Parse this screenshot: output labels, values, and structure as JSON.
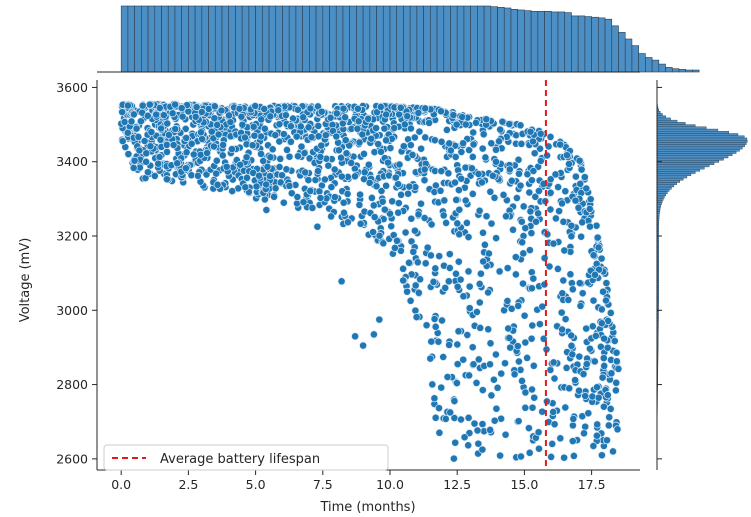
{
  "chart_data": {
    "type": "scatter",
    "title": "",
    "xlabel": "Time (months)",
    "ylabel": "Voltage (mV)",
    "xlim": [
      -0.9,
      19.3
    ],
    "ylim": [
      2570,
      3620
    ],
    "xticks": [
      "0.0",
      "2.5",
      "5.0",
      "7.5",
      "10.0",
      "12.5",
      "15.0",
      "17.5"
    ],
    "xtick_values": [
      0,
      2.5,
      5,
      7.5,
      10,
      12.5,
      15,
      17.5
    ],
    "yticks": [
      "2600",
      "2800",
      "3000",
      "3200",
      "3400",
      "3600"
    ],
    "ytick_values": [
      2600,
      2800,
      3000,
      3200,
      3400,
      3600
    ],
    "grid": false,
    "colors": {
      "points": "#1f77b4",
      "point_edge": "#dbe9f6",
      "hist": "#4c8fc4",
      "hist_edge": "#2c3e50",
      "lifespan_line": "#e31a1c",
      "axes": "#262626"
    },
    "series": [
      {
        "description": "battery voltage readings (dense cloud); approximate upper/lower envelope of the point cloud",
        "envelope_x": [
          0,
          2,
          4,
          6,
          8,
          10,
          11,
          12,
          13,
          14,
          15,
          16,
          17,
          17.5,
          18,
          18.5
        ],
        "envelope_upper": [
          3555,
          3555,
          3550,
          3550,
          3550,
          3550,
          3545,
          3540,
          3520,
          3510,
          3500,
          3470,
          3420,
          3300,
          3100,
          2850
        ],
        "envelope_lower": [
          3360,
          3340,
          3320,
          3280,
          3240,
          3170,
          2950,
          2600,
          2600,
          2600,
          2600,
          2600,
          2600,
          2600,
          2600,
          2600
        ],
        "outliers": [
          [
            7.3,
            3225
          ],
          [
            5.4,
            3270
          ],
          [
            8.2,
            3078
          ],
          [
            8.7,
            2930
          ],
          [
            9.0,
            2905
          ],
          [
            9.4,
            2935
          ],
          [
            9.6,
            2975
          ],
          [
            11.5,
            2870
          ]
        ]
      }
    ],
    "reference_lines": [
      {
        "orientation": "vertical",
        "x": 15.8,
        "style": "dashed",
        "label": "Average battery lifespan"
      }
    ],
    "legend": {
      "entries": [
        "Average battery lifespan"
      ],
      "placement": "lower-left"
    },
    "marginal_top": {
      "type": "histogram",
      "bin_start": 0,
      "bin_width": 0.25,
      "counts": [
        100,
        100,
        100,
        100,
        100,
        100,
        100,
        100,
        100,
        100,
        100,
        100,
        100,
        100,
        100,
        100,
        100,
        100,
        100,
        100,
        100,
        100,
        100,
        100,
        100,
        100,
        100,
        100,
        100,
        100,
        100,
        100,
        100,
        100,
        100,
        100,
        100,
        100,
        100,
        100,
        100,
        100,
        100,
        100,
        100,
        100,
        100,
        100,
        100,
        100,
        100,
        100,
        100,
        100,
        100,
        99,
        98,
        97,
        95,
        94,
        93,
        92,
        92,
        92,
        91,
        91,
        90,
        85,
        85,
        84,
        83,
        82,
        80,
        70,
        60,
        50,
        40,
        28,
        22,
        18,
        12,
        7,
        5,
        4,
        3,
        3
      ]
    },
    "marginal_right": {
      "type": "histogram",
      "orientation": "horizontal",
      "peak_y": 3460,
      "peak_count": 100
    }
  }
}
